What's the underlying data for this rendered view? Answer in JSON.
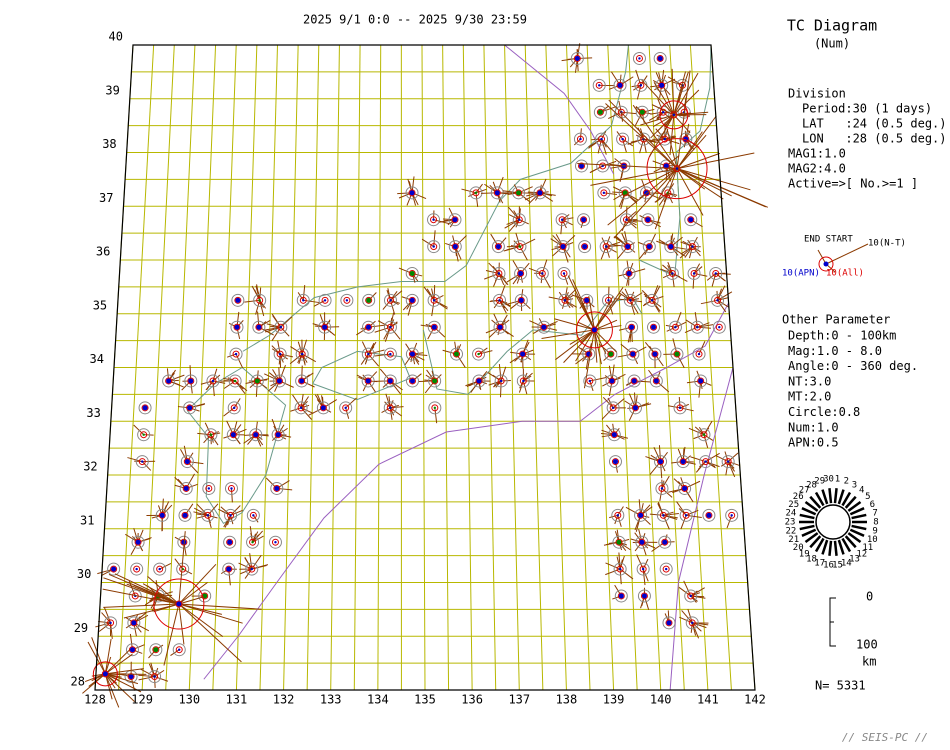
{
  "header": {
    "period": "2025 9/1 0:0 -- 2025 9/30 23:59",
    "title": "TC Diagram",
    "subtitle": "(Num)"
  },
  "map": {
    "lat_labels": [
      "28",
      "29",
      "30",
      "31",
      "32",
      "33",
      "34",
      "35",
      "36",
      "37",
      "38",
      "39",
      "40"
    ],
    "lon_labels": [
      "128",
      "129",
      "130",
      "131",
      "132",
      "133",
      "134",
      "135",
      "136",
      "137",
      "138",
      "139",
      "140",
      "141",
      "142"
    ]
  },
  "division": {
    "title": "Division",
    "lines": [
      "Period:30 (1 days)",
      "LAT   :24 (0.5 deg.)",
      "LON   :28 (0.5 deg.)"
    ],
    "mag1": "MAG1:1.0",
    "mag2": "MAG2:4.0",
    "active": "Active=>[ No.>=1 ]"
  },
  "legend": {
    "end_start": "END START",
    "nt": "10(N-T)",
    "apn": "10(APN)",
    "all": "10(All)"
  },
  "other": {
    "title": "Other Parameter",
    "lines": [
      "Depth:0 - 100km",
      "Mag:1.0 - 8.0",
      "Angle:0 - 360 deg.",
      "NT:3.0",
      "MT:2.0",
      "Circle:0.8",
      "Num:1.0",
      "APN:0.5"
    ]
  },
  "clock": {
    "labels": [
      "1",
      "2",
      "3",
      "4",
      "5",
      "6",
      "7",
      "8",
      "9",
      "10",
      "11",
      "12",
      "13",
      "14",
      "15",
      "16",
      "17",
      "18",
      "19",
      "20",
      "21",
      "22",
      "23",
      "24",
      "25",
      "26",
      "27",
      "28",
      "29",
      "30"
    ]
  },
  "scale": {
    "top": "0",
    "bottom": "100",
    "unit": "km"
  },
  "count": "N= 5331",
  "footer": "// SEIS-PC //"
}
